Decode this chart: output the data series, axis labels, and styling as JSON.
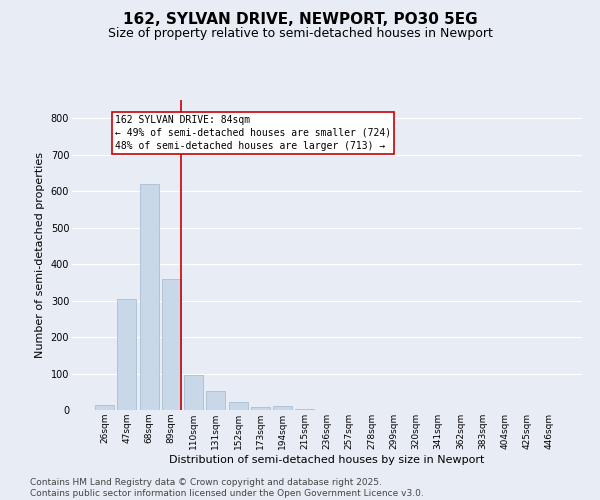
{
  "title": "162, SYLVAN DRIVE, NEWPORT, PO30 5EG",
  "subtitle": "Size of property relative to semi-detached houses in Newport",
  "xlabel": "Distribution of semi-detached houses by size in Newport",
  "ylabel": "Number of semi-detached properties",
  "categories": [
    "26sqm",
    "47sqm",
    "68sqm",
    "89sqm",
    "110sqm",
    "131sqm",
    "152sqm",
    "173sqm",
    "194sqm",
    "215sqm",
    "236sqm",
    "257sqm",
    "278sqm",
    "299sqm",
    "320sqm",
    "341sqm",
    "362sqm",
    "383sqm",
    "404sqm",
    "425sqm",
    "446sqm"
  ],
  "values": [
    15,
    305,
    620,
    360,
    97,
    53,
    22,
    9,
    12,
    2,
    0,
    0,
    1,
    0,
    0,
    0,
    0,
    0,
    0,
    0,
    0
  ],
  "bar_color": "#c8d8e8",
  "bar_edge_color": "#a0b8cc",
  "vline_color": "#cc0000",
  "annotation_text": "162 SYLVAN DRIVE: 84sqm\n← 49% of semi-detached houses are smaller (724)\n48% of semi-detached houses are larger (713) →",
  "annotation_box_facecolor": "#ffffff",
  "annotation_box_edgecolor": "#cc0000",
  "background_color": "#e8edf5",
  "ylim": [
    0,
    850
  ],
  "yticks": [
    0,
    100,
    200,
    300,
    400,
    500,
    600,
    700,
    800
  ],
  "footer_text": "Contains HM Land Registry data © Crown copyright and database right 2025.\nContains public sector information licensed under the Open Government Licence v3.0.",
  "title_fontsize": 11,
  "subtitle_fontsize": 9,
  "label_fontsize": 8,
  "tick_fontsize": 7,
  "annotation_fontsize": 7,
  "footer_fontsize": 6.5
}
